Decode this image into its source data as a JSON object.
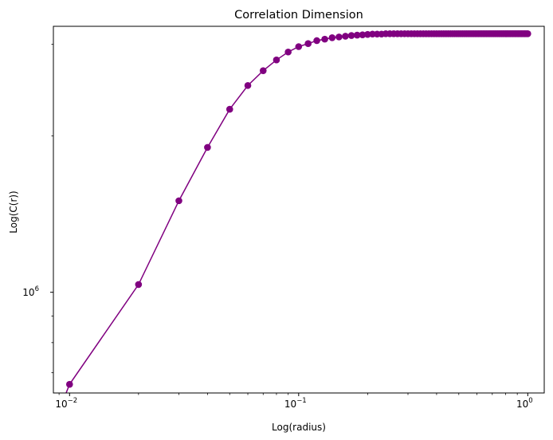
{
  "chart_data": {
    "type": "line",
    "title": "Correlation Dimension",
    "xlabel": "Log(radius)",
    "ylabel": "Log(C(r))",
    "xscale": "log",
    "yscale": "log",
    "xlim": [
      0.0085,
      1.18
    ],
    "ylim": [
      640000,
      3250000
    ],
    "grid": false,
    "legend": "none",
    "color": "#800080",
    "marker": "circle",
    "x_ticks": [
      {
        "value": 0.01,
        "base": "10",
        "exp": "−2"
      },
      {
        "value": 0.1,
        "base": "10",
        "exp": "−1"
      },
      {
        "value": 1,
        "base": "10",
        "exp": "0"
      }
    ],
    "y_ticks": [
      {
        "value": 1000000,
        "base": "10",
        "exp": "6"
      }
    ],
    "line_start": {
      "x": 0.0085,
      "y": 555000
    },
    "x": [
      0.01,
      0.02,
      0.03,
      0.04,
      0.05,
      0.06,
      0.07,
      0.08,
      0.09,
      0.1,
      0.11,
      0.12,
      0.13,
      0.14,
      0.15,
      0.16,
      0.17,
      0.18,
      0.19,
      0.2,
      0.21,
      0.22,
      0.23,
      0.24,
      0.25,
      0.26,
      0.27,
      0.28,
      0.29,
      0.3,
      0.31,
      0.32,
      0.33,
      0.34,
      0.35,
      0.36,
      0.37,
      0.38,
      0.39,
      0.4,
      0.41,
      0.42,
      0.43,
      0.44,
      0.45,
      0.46,
      0.47,
      0.48,
      0.49,
      0.5,
      0.51,
      0.52,
      0.53,
      0.54,
      0.55,
      0.56,
      0.57,
      0.58,
      0.59,
      0.6,
      0.61,
      0.62,
      0.63,
      0.64,
      0.65,
      0.66,
      0.67,
      0.68,
      0.69,
      0.7,
      0.71,
      0.72,
      0.73,
      0.74,
      0.75,
      0.76,
      0.77,
      0.78,
      0.79,
      0.8,
      0.81,
      0.82,
      0.83,
      0.84,
      0.85,
      0.86,
      0.87,
      0.88,
      0.89,
      0.9,
      0.91,
      0.92,
      0.93,
      0.94,
      0.95,
      0.96,
      0.97,
      0.98,
      0.99,
      1.0
    ],
    "y": [
      665000,
      1035000,
      1500000,
      1900000,
      2250000,
      2500000,
      2670000,
      2800000,
      2900000,
      2970000,
      3010000,
      3050000,
      3070000,
      3090000,
      3100000,
      3110000,
      3120000,
      3125000,
      3130000,
      3135000,
      3140000,
      3140000,
      3140000,
      3145000,
      3145000,
      3145000,
      3145000,
      3145000,
      3145000,
      3145000,
      3145000,
      3145000,
      3145000,
      3145000,
      3145000,
      3145000,
      3145000,
      3145000,
      3145000,
      3145000,
      3145000,
      3145000,
      3145000,
      3145000,
      3145000,
      3145000,
      3145000,
      3145000,
      3145000,
      3145000,
      3145000,
      3145000,
      3145000,
      3145000,
      3145000,
      3145000,
      3145000,
      3145000,
      3145000,
      3145000,
      3145000,
      3145000,
      3145000,
      3145000,
      3145000,
      3145000,
      3145000,
      3145000,
      3145000,
      3145000,
      3145000,
      3145000,
      3145000,
      3145000,
      3145000,
      3145000,
      3145000,
      3145000,
      3145000,
      3145000,
      3145000,
      3145000,
      3145000,
      3145000,
      3145000,
      3145000,
      3145000,
      3145000,
      3145000,
      3145000,
      3145000,
      3145000,
      3145000,
      3145000,
      3145000,
      3145000,
      3145000,
      3145000,
      3145000,
      3145000
    ]
  }
}
